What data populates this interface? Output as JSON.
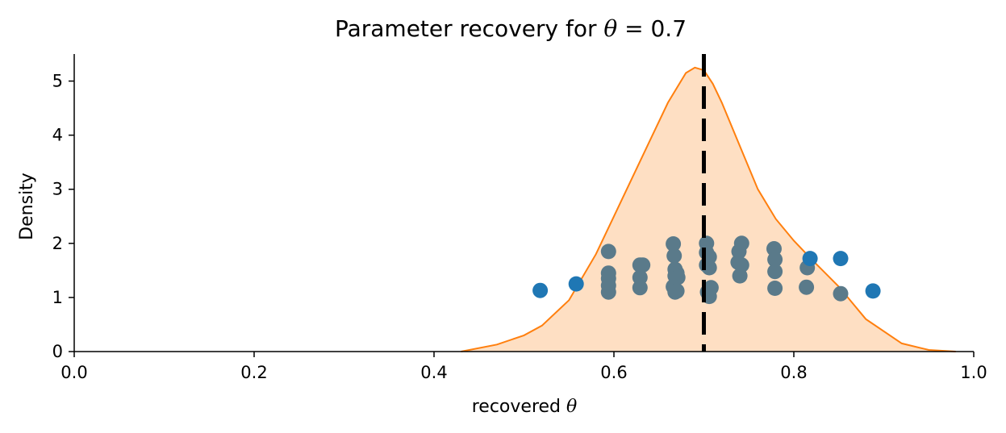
{
  "chart_data": {
    "type": "scatter",
    "title": {
      "prefix": "Parameter recovery for ",
      "symbol": "θ",
      "suffix": " = 0.7"
    },
    "xlabel": {
      "prefix": "recovered ",
      "symbol": "θ"
    },
    "ylabel": "Density",
    "xlim": [
      0,
      1
    ],
    "ylim": [
      0,
      5.5
    ],
    "x_ticks": [
      0,
      0.2,
      0.4,
      0.6,
      0.8,
      1.0
    ],
    "x_tick_labels": [
      "0.0",
      "0.2",
      "0.4",
      "0.6",
      "0.8",
      "1.0"
    ],
    "y_ticks": [
      0,
      1,
      2,
      3,
      4,
      5
    ],
    "y_tick_labels": [
      "0",
      "1",
      "2",
      "3",
      "4",
      "5"
    ],
    "reference_line_x": 0.7,
    "colors": {
      "outside_points": "#1f77b4",
      "inside_points": "#5a7a8a",
      "kde_line": "#ff7f0e",
      "kde_fill": "#fedfc3",
      "reference_line": "#000000"
    },
    "kde": {
      "x": [
        0.43,
        0.47,
        0.5,
        0.52,
        0.55,
        0.58,
        0.6,
        0.62,
        0.64,
        0.66,
        0.68,
        0.69,
        0.7,
        0.71,
        0.72,
        0.74,
        0.76,
        0.78,
        0.8,
        0.82,
        0.85,
        0.88,
        0.92,
        0.95,
        0.98
      ],
      "y": [
        0.0,
        0.13,
        0.3,
        0.48,
        0.95,
        1.8,
        2.5,
        3.2,
        3.9,
        4.6,
        5.15,
        5.25,
        5.2,
        4.95,
        4.6,
        3.8,
        3.0,
        2.45,
        2.05,
        1.7,
        1.2,
        0.6,
        0.15,
        0.03,
        0.0
      ]
    },
    "points_outside": [
      {
        "x": 0.518,
        "y": 1.13
      },
      {
        "x": 0.558,
        "y": 1.25
      },
      {
        "x": 0.818,
        "y": 1.72
      },
      {
        "x": 0.852,
        "y": 1.72
      },
      {
        "x": 0.888,
        "y": 1.12
      }
    ],
    "points_inside": [
      {
        "x": 0.594,
        "y": 1.85
      },
      {
        "x": 0.594,
        "y": 1.45
      },
      {
        "x": 0.594,
        "y": 1.35
      },
      {
        "x": 0.594,
        "y": 1.22
      },
      {
        "x": 0.594,
        "y": 1.1
      },
      {
        "x": 0.629,
        "y": 1.6
      },
      {
        "x": 0.632,
        "y": 1.6
      },
      {
        "x": 0.629,
        "y": 1.37
      },
      {
        "x": 0.629,
        "y": 1.18
      },
      {
        "x": 0.666,
        "y": 1.99
      },
      {
        "x": 0.667,
        "y": 1.77
      },
      {
        "x": 0.668,
        "y": 1.52
      },
      {
        "x": 0.67,
        "y": 1.45
      },
      {
        "x": 0.668,
        "y": 1.4
      },
      {
        "x": 0.671,
        "y": 1.37
      },
      {
        "x": 0.666,
        "y": 1.2
      },
      {
        "x": 0.67,
        "y": 1.12
      },
      {
        "x": 0.668,
        "y": 1.1
      },
      {
        "x": 0.703,
        "y": 2.0
      },
      {
        "x": 0.703,
        "y": 1.83
      },
      {
        "x": 0.706,
        "y": 1.75
      },
      {
        "x": 0.703,
        "y": 1.6
      },
      {
        "x": 0.706,
        "y": 1.55
      },
      {
        "x": 0.708,
        "y": 1.18
      },
      {
        "x": 0.704,
        "y": 1.1
      },
      {
        "x": 0.706,
        "y": 1.02
      },
      {
        "x": 0.742,
        "y": 2.0
      },
      {
        "x": 0.739,
        "y": 1.85
      },
      {
        "x": 0.738,
        "y": 1.65
      },
      {
        "x": 0.742,
        "y": 1.6
      },
      {
        "x": 0.74,
        "y": 1.4
      },
      {
        "x": 0.778,
        "y": 1.9
      },
      {
        "x": 0.779,
        "y": 1.7
      },
      {
        "x": 0.779,
        "y": 1.48
      },
      {
        "x": 0.779,
        "y": 1.17
      },
      {
        "x": 0.815,
        "y": 1.55
      },
      {
        "x": 0.814,
        "y": 1.19
      },
      {
        "x": 0.852,
        "y": 1.07
      }
    ]
  }
}
